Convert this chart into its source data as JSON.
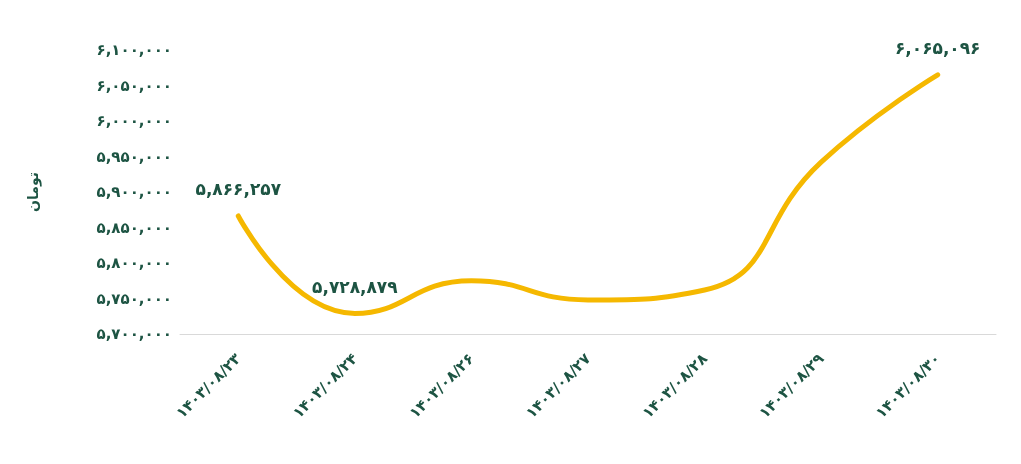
{
  "chart_data": {
    "type": "line",
    "ylabel": "تومان",
    "categories": [
      "۱۴۰۳/۰۸/۲۳",
      "۱۴۰۳/۰۸/۲۴",
      "۱۴۰۳/۰۸/۲۶",
      "۱۴۰۳/۰۸/۲۷",
      "۱۴۰۳/۰۸/۲۸",
      "۱۴۰۳/۰۸/۲۹",
      "۱۴۰۳/۰۸/۳۰"
    ],
    "series": [
      {
        "color": "#f5b800",
        "values": [
          5866257,
          5728879,
          5775000,
          5748000,
          5762000,
          5942000,
          6065096
        ],
        "value_labels": [
          "۵,۸۶۶,۲۵۷",
          "۵,۷۲۸,۸۷۹",
          null,
          null,
          null,
          null,
          "۶,۰۶۵,۰۹۶"
        ]
      }
    ],
    "ylim": [
      5700000,
      6100000
    ],
    "yticks": [
      {
        "value": 5700000,
        "label": "۵,۷۰۰,۰۰۰"
      },
      {
        "value": 5750000,
        "label": "۵,۷۵۰,۰۰۰"
      },
      {
        "value": 5800000,
        "label": "۵,۸۰۰,۰۰۰"
      },
      {
        "value": 5850000,
        "label": "۵,۸۵۰,۰۰۰"
      },
      {
        "value": 5900000,
        "label": "۵,۹۰۰,۰۰۰"
      },
      {
        "value": 5950000,
        "label": "۵,۹۵۰,۰۰۰"
      },
      {
        "value": 6000000,
        "label": "۶,۰۰۰,۰۰۰"
      },
      {
        "value": 6050000,
        "label": "۶,۰۵۰,۰۰۰"
      },
      {
        "value": 6100000,
        "label": "۶,۱۰۰,۰۰۰"
      }
    ],
    "grid": false,
    "marker": "none",
    "line_style": "solid"
  }
}
